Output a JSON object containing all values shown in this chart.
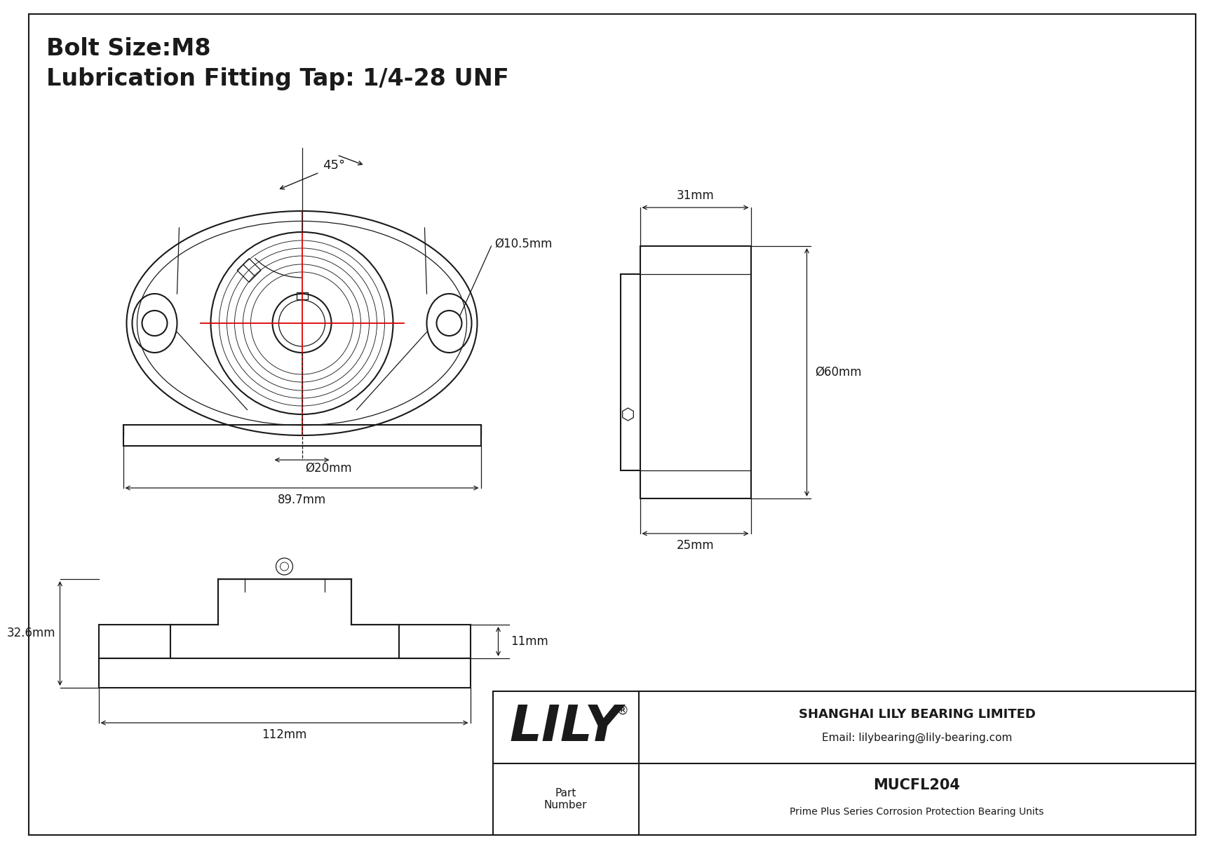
{
  "title_line1": "Bolt Size:M8",
  "title_line2": "Lubrication Fitting Tap: 1/4-28 UNF",
  "bg_color": "#ffffff",
  "line_color": "#1a1a1a",
  "red_color": "#dd0000",
  "part_number": "MUCFL204",
  "part_desc": "Prime Plus Series Corrosion Protection Bearing Units",
  "company": "SHANGHAI LILY BEARING LIMITED",
  "email": "Email: lilybearing@lily-bearing.com",
  "lily_text": "LILY",
  "dims": {
    "bolt_hole_dia": "10.5mm",
    "bore_dia": "20mm",
    "width": "89.7mm",
    "side_width": "31mm",
    "height": "60mm",
    "base_width": "25mm",
    "total_height": "32.6mm",
    "total_width": "112mm",
    "side_depth": "11mm",
    "angle": "45°"
  }
}
